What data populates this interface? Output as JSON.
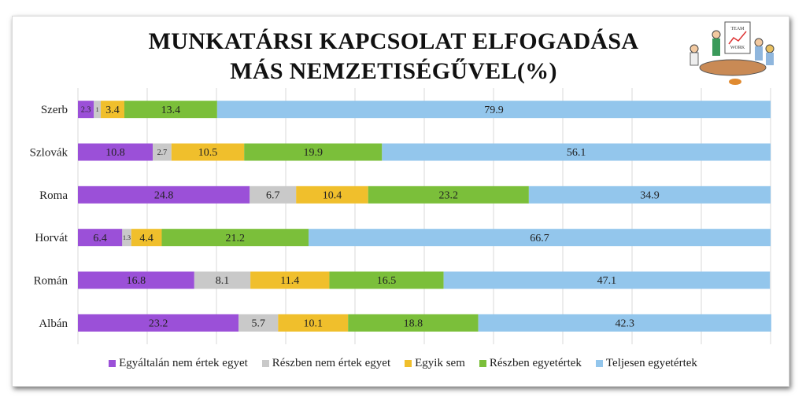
{
  "chart_data": {
    "type": "bar",
    "orientation": "horizontal",
    "stacked": true,
    "title": "MUNKATÁRSI KAPCSOLAT ELFOGADÁSA MÁS NEMZETISÉGŰVEL(%)",
    "title_lines": [
      "MUNKATÁRSI KAPCSOLAT ELFOGADÁSA",
      "MÁS NEMZETISÉGŰVEL(%)"
    ],
    "categories": [
      "Szerb",
      "Szlovák",
      "Roma",
      "Horvát",
      "Román",
      "Albán"
    ],
    "series": [
      {
        "name": "Egyáltalán nem értek egyet",
        "color": "#9b50d8",
        "values": [
          2.3,
          10.8,
          24.8,
          6.4,
          16.8,
          23.2
        ]
      },
      {
        "name": "Részben nem értek egyet",
        "color": "#c9c9c9",
        "values": [
          1,
          2.7,
          6.7,
          1.3,
          8.1,
          5.7
        ]
      },
      {
        "name": "Egyik sem",
        "color": "#f0bf2c",
        "values": [
          3.4,
          10.5,
          10.4,
          4.4,
          11.4,
          10.1
        ]
      },
      {
        "name": "Részben egyetértek",
        "color": "#7bbf3a",
        "values": [
          13.4,
          19.9,
          23.2,
          21.2,
          16.5,
          18.8
        ]
      },
      {
        "name": "Teljesen egyetértek",
        "color": "#93c6ec",
        "values": [
          79.9,
          56.1,
          34.9,
          66.7,
          47.1,
          42.3
        ]
      }
    ],
    "xlim": [
      0,
      100
    ],
    "grid": true,
    "data_labels": true,
    "legend": "bottom"
  },
  "illustration_text": [
    "TEAM",
    "WORK"
  ]
}
